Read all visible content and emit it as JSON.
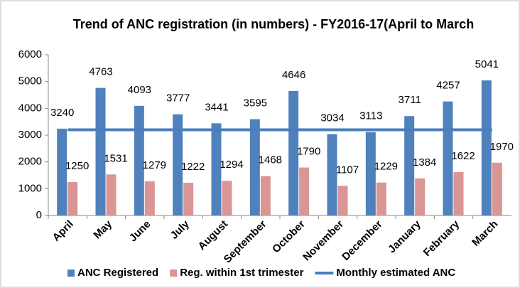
{
  "chart_data": {
    "type": "bar",
    "title": "Trend of ANC registration (in numbers) - FY2016-17(April to March",
    "categories": [
      "April",
      "May",
      "June",
      "July",
      "August",
      "September",
      "October",
      "November",
      "December",
      "January",
      "February",
      "March"
    ],
    "series": [
      {
        "name": "ANC Registered",
        "color": "#4f81bd",
        "values": [
          3240,
          4763,
          4093,
          3777,
          3441,
          3595,
          4646,
          3034,
          3113,
          3711,
          4257,
          5041
        ]
      },
      {
        "name": "Reg. within 1st trimester",
        "color": "#d99694",
        "values": [
          1250,
          1531,
          1279,
          1222,
          1294,
          1468,
          1790,
          1107,
          1229,
          1384,
          1622,
          1970
        ]
      },
      {
        "name": "Monthly estimated ANC",
        "color": "#4a7ebb",
        "type": "line",
        "values": [
          3200,
          3200,
          3200,
          3200,
          3200,
          3200,
          3200,
          3200,
          3200,
          3200,
          3200,
          3200
        ]
      }
    ],
    "ylim": [
      0,
      6000
    ],
    "yticks": [
      0,
      1000,
      2000,
      3000,
      4000,
      5000,
      6000
    ],
    "grid": false,
    "legend": "bottom"
  }
}
